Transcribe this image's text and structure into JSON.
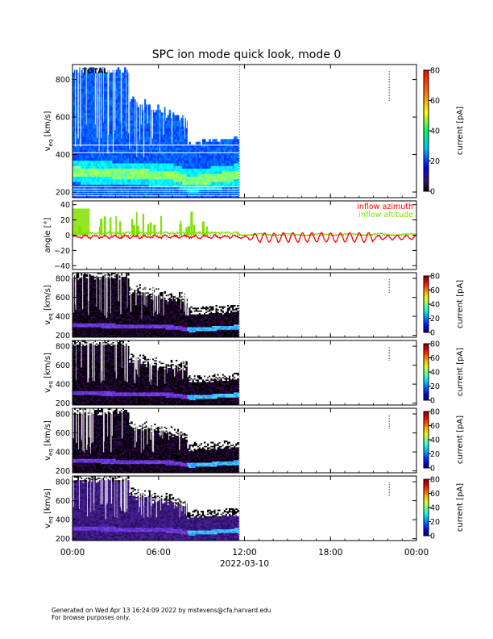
{
  "title": "SPC ion mode quick look, mode 0",
  "footer": {
    "line1": "Generated on Wed Apr 13 16:24:09 2022 by mstevens@cfa.harvard.edu",
    "line2": "For browse purposes only."
  },
  "x_axis": {
    "tick_labels": [
      "00:00",
      "06:00",
      "12:00",
      "18:00",
      "00:00"
    ],
    "date_label": "2022-03-10"
  },
  "colorbar_label": "current [pA]",
  "chart_data": [
    {
      "type": "heatmap",
      "panel_label": "TOTAL",
      "ylabel": "v_eq [km/s]",
      "ylim": [
        170,
        880
      ],
      "yticks": [
        200,
        400,
        600,
        800
      ],
      "ytick_labels": [
        "200",
        "400",
        "600",
        "800"
      ],
      "data_end_hour": 11.6,
      "colorbar": {
        "range": [
          0,
          80
        ],
        "ticks": [
          0,
          20,
          40,
          60,
          80
        ]
      },
      "core_velocity_kms": [
        [
          0,
          310
        ],
        [
          4,
          300
        ],
        [
          7,
          290
        ],
        [
          8,
          265
        ],
        [
          9,
          265
        ],
        [
          11.6,
          290
        ]
      ],
      "gap_lines_kms": [
        450,
        410
      ]
    },
    {
      "type": "line",
      "ylabel": "angle [°]",
      "ylim": [
        -45,
        45
      ],
      "yticks": [
        -40,
        -20,
        0,
        20,
        40
      ],
      "ytick_labels": [
        "−40",
        "−20",
        "0",
        "20",
        "40"
      ],
      "series": [
        {
          "name": "inflow azimuth",
          "color": "#ff0000",
          "summary": {
            "x": [
              0,
              6,
              9,
              11,
              12,
              16,
              20,
              24
            ],
            "y": [
              -2,
              -2,
              -1,
              0,
              -3,
              -6,
              -5,
              -2
            ]
          }
        },
        {
          "name": "inflow altitude",
          "color": "#80e000",
          "summary": {
            "x": [
              0,
              6,
              9,
              11,
              12,
              16,
              20,
              24
            ],
            "y": [
              3,
              2,
              4,
              2,
              1,
              1,
              1,
              2
            ]
          }
        }
      ]
    },
    {
      "type": "heatmap",
      "ylabel": "v_eq [km/s]",
      "ylim": [
        180,
        860
      ],
      "yticks": [
        200,
        400,
        600,
        800
      ],
      "ytick_labels": [
        "200",
        "400",
        "600",
        "800"
      ],
      "colorbar": {
        "range": [
          0,
          80
        ],
        "ticks": [
          0,
          20,
          40,
          60,
          80
        ]
      }
    },
    {
      "type": "heatmap",
      "ylabel": "v_eq [km/s]",
      "ylim": [
        180,
        860
      ],
      "yticks": [
        200,
        400,
        600,
        800
      ],
      "ytick_labels": [
        "200",
        "400",
        "600",
        "800"
      ],
      "colorbar": {
        "range": [
          0,
          80
        ],
        "ticks": [
          0,
          20,
          40,
          60,
          80
        ]
      }
    },
    {
      "type": "heatmap",
      "ylabel": "v_eq [km/s]",
      "ylim": [
        180,
        860
      ],
      "yticks": [
        200,
        400,
        600,
        800
      ],
      "ytick_labels": [
        "200",
        "400",
        "600",
        "800"
      ],
      "colorbar": {
        "range": [
          0,
          80
        ],
        "ticks": [
          0,
          20,
          40,
          60,
          80
        ]
      }
    },
    {
      "type": "heatmap",
      "ylabel": "v_eq [km/s]",
      "ylim": [
        180,
        860
      ],
      "yticks": [
        200,
        400,
        600,
        800
      ],
      "ytick_labels": [
        "200",
        "400",
        "600",
        "800"
      ],
      "colorbar": {
        "range": [
          0,
          80
        ],
        "ticks": [
          0,
          20,
          40,
          60,
          80
        ]
      }
    }
  ]
}
